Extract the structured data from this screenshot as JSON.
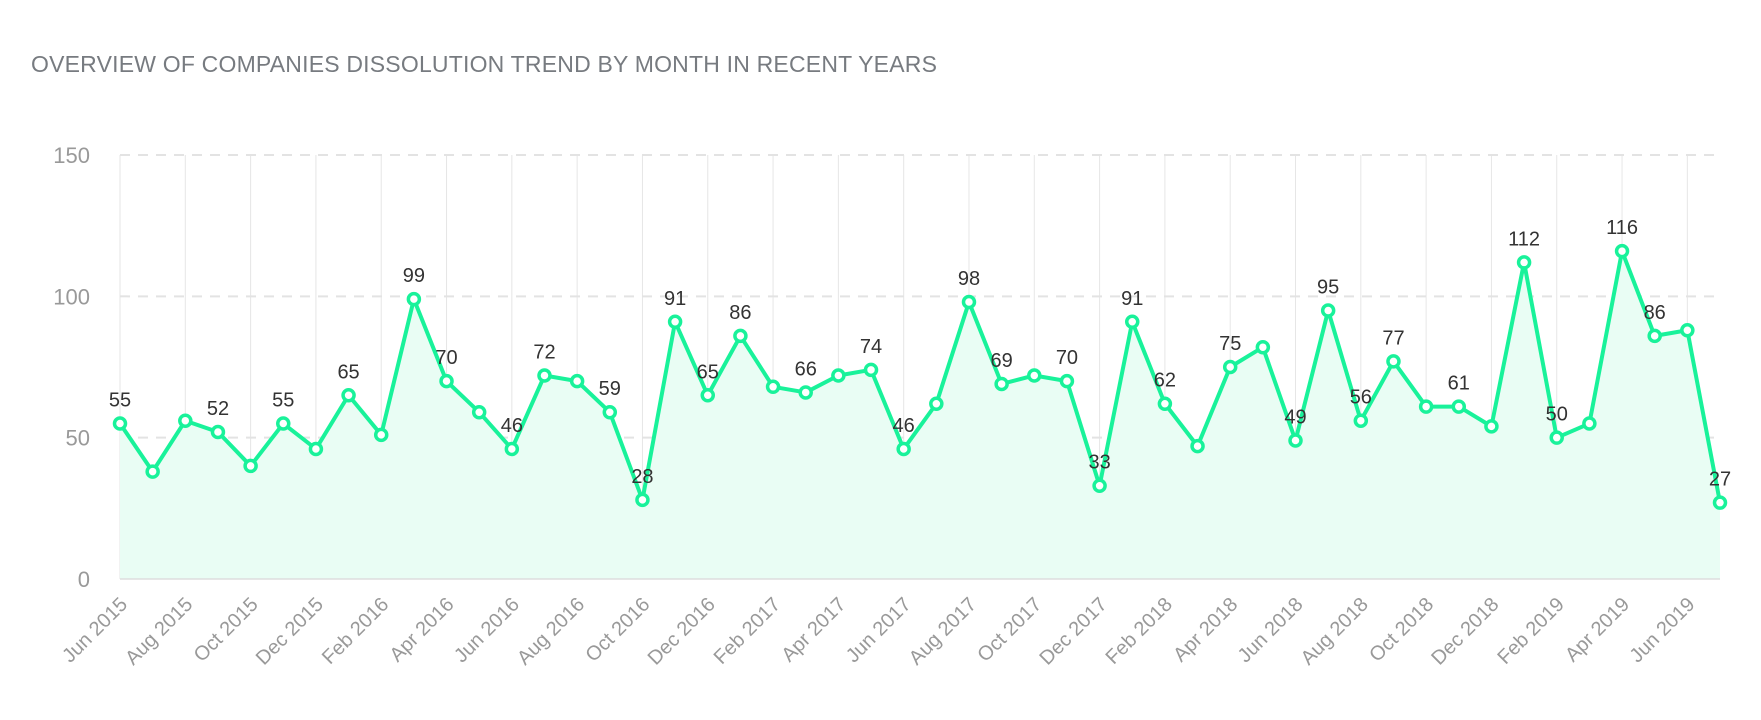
{
  "chart_data": {
    "type": "area",
    "title": "OVERVIEW OF COMPANIES DISSOLUTION TREND BY MONTH IN RECENT YEARS",
    "xlabel": "",
    "ylabel": "",
    "ylim": [
      0,
      150
    ],
    "yticks": [
      0,
      50,
      100,
      150
    ],
    "grid": true,
    "line_color": "#19f29a",
    "fill_color": "#e9fdf4",
    "x": [
      "Jun 2015",
      "Jul 2015",
      "Aug 2015",
      "Sep 2015",
      "Oct 2015",
      "Nov 2015",
      "Dec 2015",
      "Jan 2016",
      "Feb 2016",
      "Mar 2016",
      "Apr 2016",
      "May 2016",
      "Jun 2016",
      "Jul 2016",
      "Aug 2016",
      "Sep 2016",
      "Oct 2016",
      "Nov 2016",
      "Dec 2016",
      "Jan 2017",
      "Feb 2017",
      "Mar 2017",
      "Apr 2017",
      "May 2017",
      "Jun 2017",
      "Jul 2017",
      "Aug 2017",
      "Sep 2017",
      "Oct 2017",
      "Nov 2017",
      "Dec 2017",
      "Jan 2018",
      "Feb 2018",
      "Mar 2018",
      "Apr 2018",
      "May 2018",
      "Jun 2018",
      "Jul 2018",
      "Aug 2018",
      "Sep 2018",
      "Oct 2018",
      "Nov 2018",
      "Dec 2018",
      "Jan 2019",
      "Feb 2019",
      "Mar 2019",
      "Apr 2019",
      "May 2019",
      "Jun 2019",
      "Jul 2019"
    ],
    "x_tick_labels": [
      "Jun 2015",
      "Aug 2015",
      "Oct 2015",
      "Dec 2015",
      "Feb 2016",
      "Apr 2016",
      "Jun 2016",
      "Aug 2016",
      "Oct 2016",
      "Dec 2016",
      "Feb 2017",
      "Apr 2017",
      "Jun 2017",
      "Aug 2017",
      "Oct 2017",
      "Dec 2017",
      "Feb 2018",
      "Apr 2018",
      "Jun 2018",
      "Aug 2018",
      "Oct 2018",
      "Dec 2018",
      "Feb 2019",
      "Apr 2019",
      "Jun 2019"
    ],
    "series": [
      {
        "values": [
          55,
          38,
          56,
          52,
          40,
          55,
          46,
          65,
          51,
          99,
          70,
          59,
          46,
          72,
          70,
          59,
          28,
          91,
          65,
          86,
          68,
          66,
          72,
          74,
          46,
          62,
          98,
          69,
          72,
          70,
          33,
          91,
          62,
          47,
          75,
          82,
          49,
          95,
          56,
          77,
          61,
          61,
          54,
          112,
          50,
          55,
          116,
          86,
          88,
          27
        ],
        "shown_labels": [
          55,
          null,
          null,
          52,
          null,
          55,
          null,
          65,
          null,
          99,
          70,
          null,
          46,
          72,
          null,
          59,
          28,
          91,
          65,
          86,
          null,
          66,
          null,
          74,
          46,
          null,
          98,
          69,
          null,
          70,
          33,
          91,
          62,
          null,
          75,
          null,
          49,
          95,
          56,
          77,
          null,
          61,
          null,
          112,
          50,
          null,
          116,
          86,
          null,
          27
        ]
      }
    ]
  }
}
